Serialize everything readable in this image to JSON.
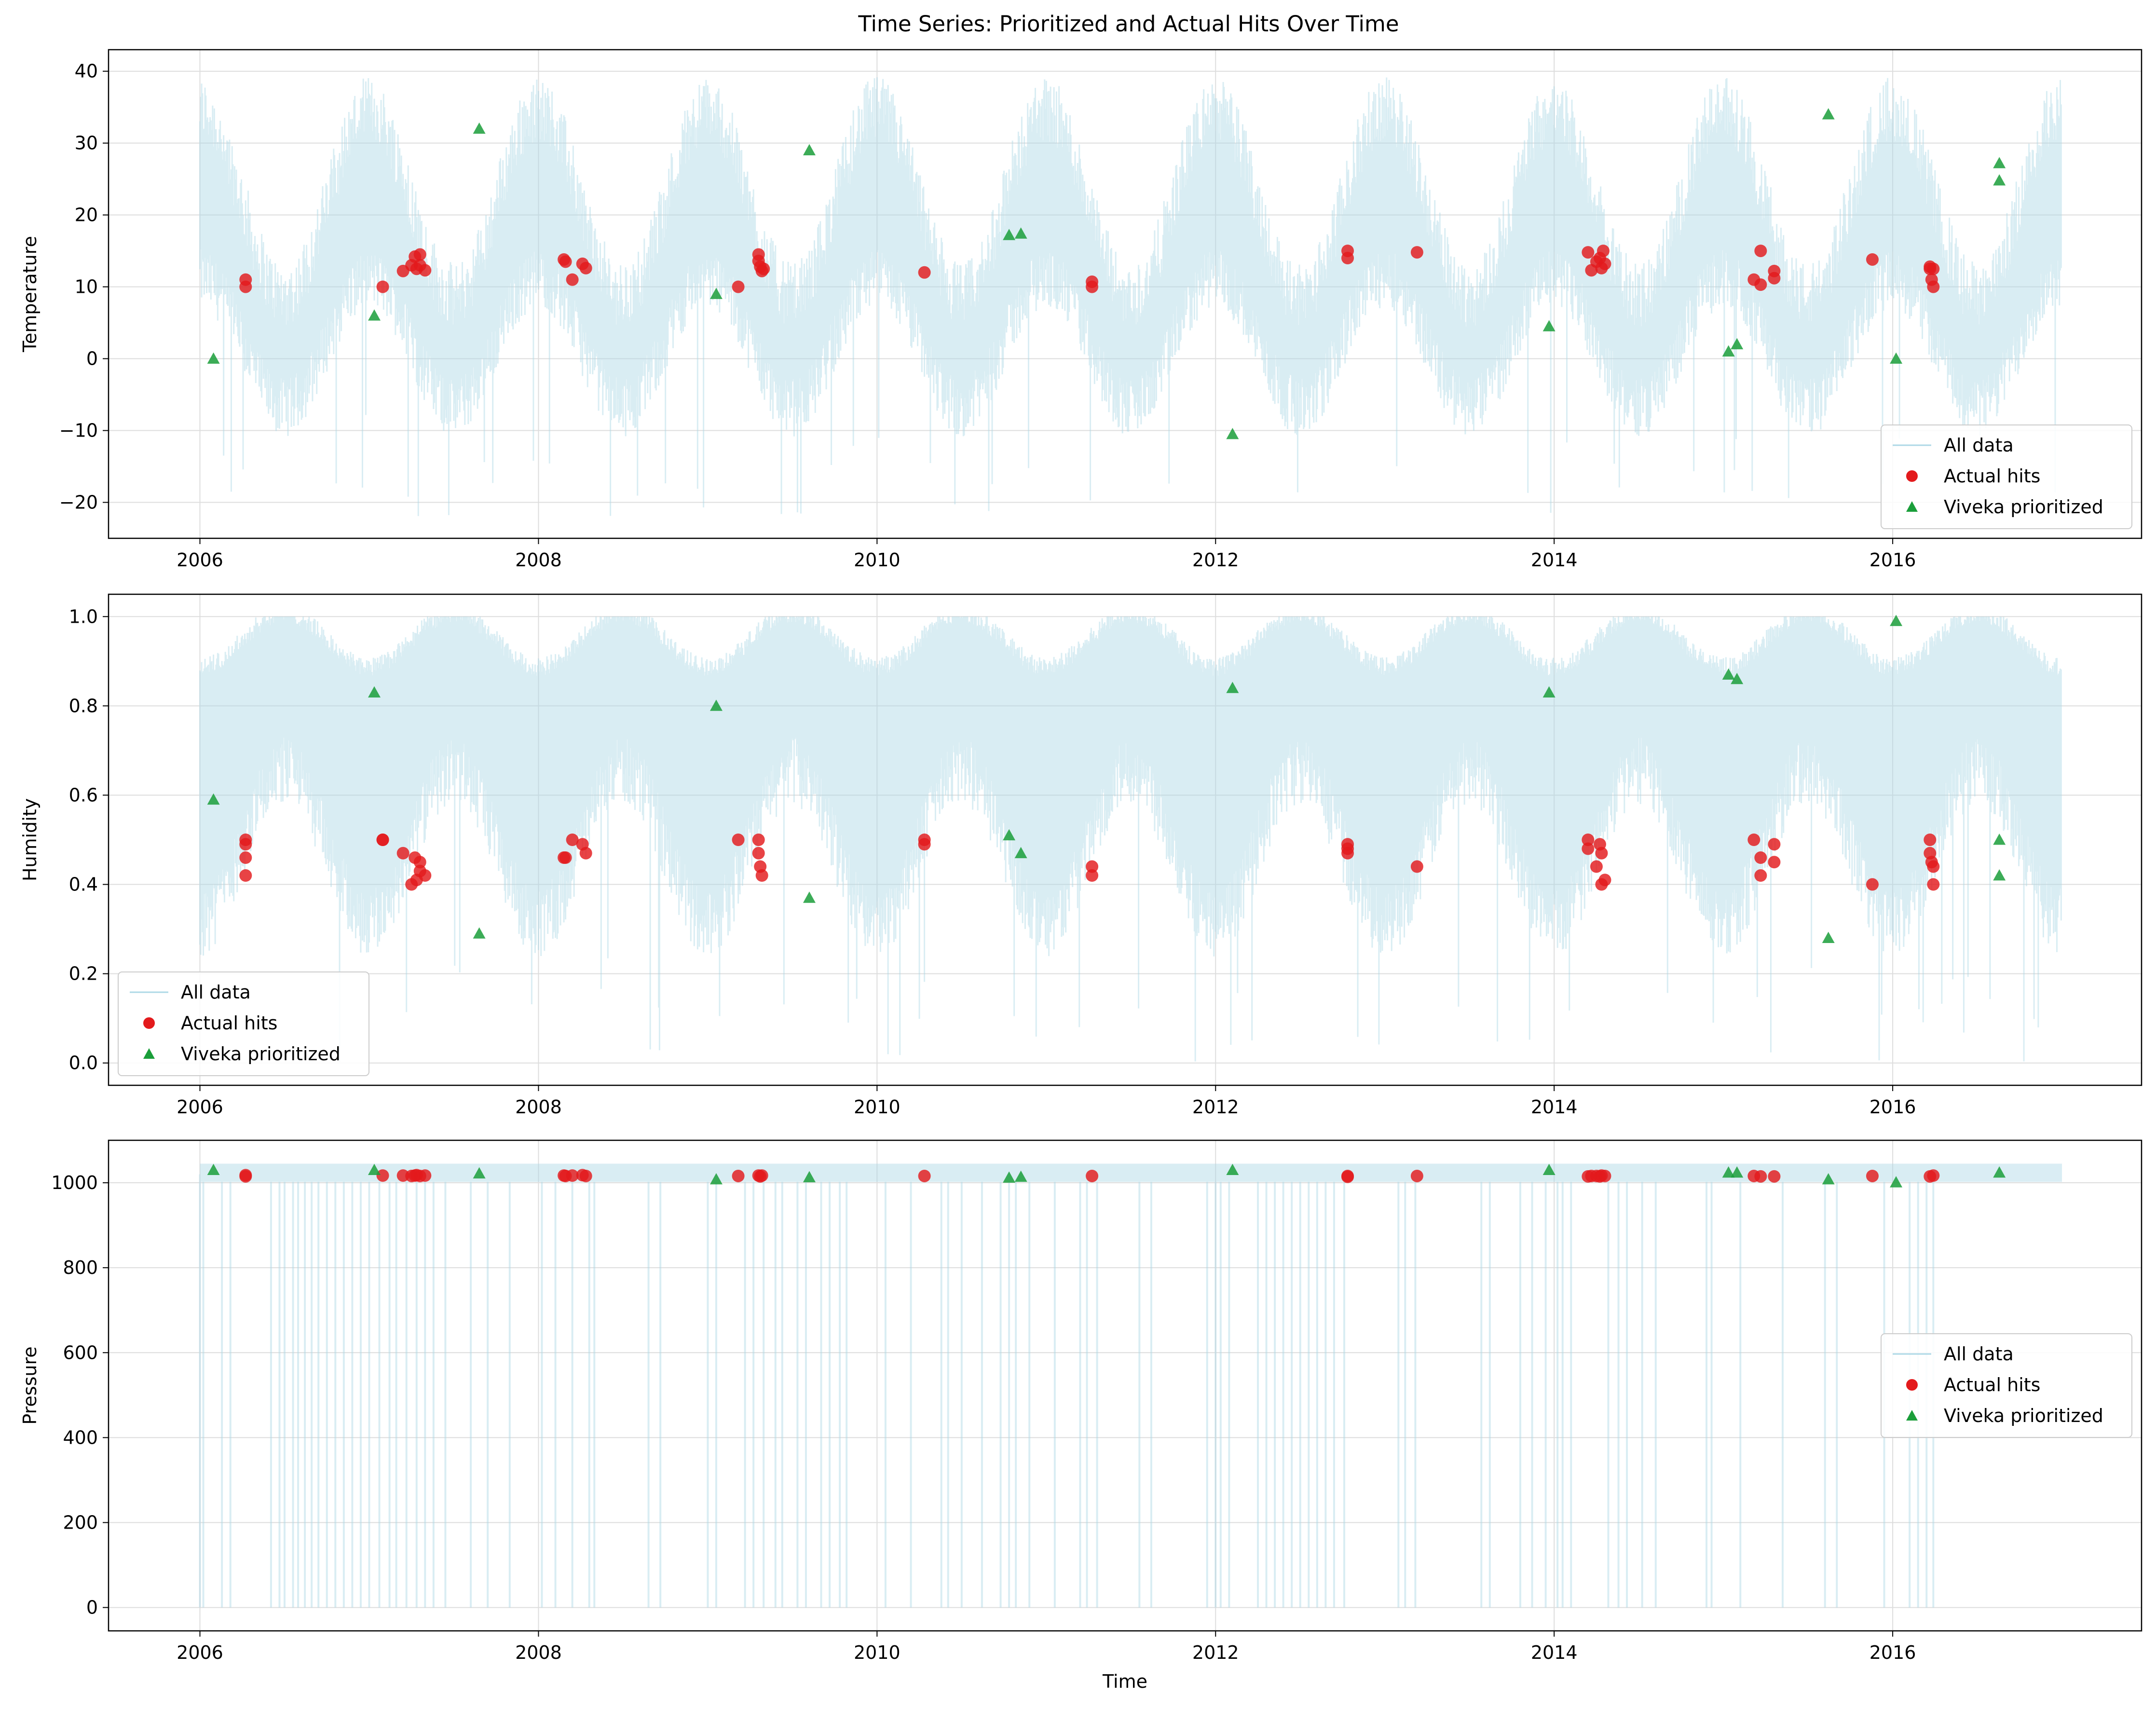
{
  "figure_title": "Time Series: Prioritized and Actual Hits Over Time",
  "colors": {
    "all_data": "#add8e6",
    "actual_hits": "#e31a1c",
    "prioritized": "#1a9e3a",
    "grid": "#dddddd"
  },
  "chart_data": [
    {
      "type": "scatter",
      "ylabel": "Temperature",
      "xlabel": "",
      "xlim": [
        2005.46,
        2017.47
      ],
      "ylim": [
        -25,
        43
      ],
      "xticks": [
        2006,
        2008,
        2010,
        2012,
        2014,
        2016
      ],
      "xtick_labels": [
        "2006",
        "2008",
        "2010",
        "2012",
        "2014",
        "2016"
      ],
      "yticks": [
        -20,
        -10,
        0,
        10,
        20,
        30,
        40
      ],
      "ytick_labels": [
        "−20",
        "−10",
        "0",
        "10",
        "20",
        "30",
        "40"
      ],
      "grid": true,
      "legend": {
        "placement": "lower-right",
        "entries": [
          "All data",
          "Actual hits",
          "Viveka prioritized"
        ]
      },
      "background": {
        "name": "All data",
        "kind": "seasonal_band",
        "range_x": [
          2006.0,
          2017.0
        ],
        "low_mean": 3,
        "low_amp": 9,
        "high_mean": 20,
        "high_amp": 13,
        "min": -22,
        "max": 40,
        "peak_phase": 0.5
      },
      "series": [
        {
          "name": "Actual hits",
          "marker": "circle",
          "x": [
            2006.27,
            2006.27,
            2007.08,
            2007.2,
            2007.25,
            2007.27,
            2007.28,
            2007.3,
            2007.3,
            2007.33,
            2008.15,
            2008.16,
            2008.2,
            2008.26,
            2008.28,
            2009.18,
            2009.3,
            2009.3,
            2009.31,
            2009.32,
            2009.33,
            2010.28,
            2011.27,
            2011.27,
            2012.78,
            2012.78,
            2013.19,
            2014.2,
            2014.22,
            2014.25,
            2014.27,
            2014.28,
            2014.29,
            2014.3,
            2015.18,
            2015.22,
            2015.22,
            2015.3,
            2015.3,
            2015.88,
            2016.22,
            2016.22,
            2016.23,
            2016.24,
            2016.24
          ],
          "y": [
            11,
            10,
            10,
            12.2,
            13,
            14.2,
            12.5,
            14.5,
            13,
            12.3,
            13.8,
            13.5,
            11,
            13.2,
            12.6,
            10,
            14.5,
            13.6,
            12.8,
            12.2,
            12.5,
            12,
            10.7,
            10,
            15,
            14,
            14.8,
            14.8,
            12.3,
            13.5,
            14,
            12.6,
            15,
            13.2,
            11,
            10.3,
            15,
            12.2,
            11.2,
            13.8,
            12.8,
            12.5,
            11,
            10,
            12.5
          ]
        },
        {
          "name": "Viveka prioritized",
          "marker": "triangle",
          "x": [
            2006.08,
            2007.03,
            2007.65,
            2009.05,
            2009.6,
            2010.78,
            2010.85,
            2012.1,
            2013.97,
            2015.03,
            2015.08,
            2015.62,
            2016.02,
            2016.63,
            2016.63
          ],
          "y": [
            0,
            6,
            32,
            9,
            29,
            17.2,
            17.4,
            -10.5,
            4.5,
            1,
            2,
            34,
            0,
            27.2,
            24.8
          ]
        }
      ]
    },
    {
      "type": "scatter",
      "ylabel": "Humidity",
      "xlabel": "",
      "xlim": [
        2005.46,
        2017.47
      ],
      "ylim": [
        -0.05,
        1.05
      ],
      "xticks": [
        2006,
        2008,
        2010,
        2012,
        2014,
        2016
      ],
      "xtick_labels": [
        "2006",
        "2008",
        "2010",
        "2012",
        "2014",
        "2016"
      ],
      "yticks": [
        0,
        0.2,
        0.4,
        0.6,
        0.8,
        1.0
      ],
      "ytick_labels": [
        "0.0",
        "0.2",
        "0.4",
        "0.6",
        "0.8",
        "1.0"
      ],
      "grid": true,
      "legend": {
        "placement": "lower-left",
        "entries": [
          "All data",
          "Actual hits",
          "Viveka prioritized"
        ]
      },
      "background": {
        "name": "All data",
        "kind": "seasonal_band",
        "range_x": [
          2006.0,
          2017.0
        ],
        "low_mean": 0.5,
        "low_amp": 0.17,
        "high_mean": 0.94,
        "high_amp": 0.06,
        "min": 0.0,
        "max": 1.0,
        "peak_phase": 0.0
      },
      "series": [
        {
          "name": "Actual hits",
          "marker": "circle",
          "x": [
            2006.27,
            2006.27,
            2006.27,
            2006.27,
            2007.08,
            2007.08,
            2007.2,
            2007.25,
            2007.27,
            2007.28,
            2007.3,
            2007.3,
            2007.33,
            2008.15,
            2008.16,
            2008.2,
            2008.26,
            2008.28,
            2009.18,
            2009.3,
            2009.3,
            2009.31,
            2009.32,
            2010.28,
            2010.28,
            2011.27,
            2011.27,
            2012.78,
            2012.78,
            2012.78,
            2013.19,
            2014.2,
            2014.2,
            2014.25,
            2014.27,
            2014.28,
            2014.28,
            2014.3,
            2015.18,
            2015.22,
            2015.22,
            2015.3,
            2015.3,
            2015.88,
            2016.22,
            2016.22,
            2016.23,
            2016.24,
            2016.24
          ],
          "y": [
            0.5,
            0.49,
            0.46,
            0.42,
            0.5,
            0.5,
            0.47,
            0.4,
            0.46,
            0.41,
            0.45,
            0.43,
            0.42,
            0.46,
            0.46,
            0.5,
            0.49,
            0.47,
            0.5,
            0.5,
            0.47,
            0.44,
            0.42,
            0.5,
            0.49,
            0.44,
            0.42,
            0.49,
            0.48,
            0.47,
            0.44,
            0.5,
            0.48,
            0.44,
            0.49,
            0.47,
            0.4,
            0.41,
            0.5,
            0.46,
            0.42,
            0.49,
            0.45,
            0.4,
            0.5,
            0.47,
            0.45,
            0.44,
            0.4
          ]
        },
        {
          "name": "Viveka prioritized",
          "marker": "triangle",
          "x": [
            2006.08,
            2007.03,
            2007.65,
            2009.05,
            2009.6,
            2010.78,
            2010.85,
            2012.1,
            2013.97,
            2015.03,
            2015.08,
            2015.62,
            2016.02,
            2016.63,
            2016.63
          ],
          "y": [
            0.59,
            0.83,
            0.29,
            0.8,
            0.37,
            0.51,
            0.47,
            0.84,
            0.83,
            0.87,
            0.86,
            0.28,
            0.99,
            0.5,
            0.42
          ]
        }
      ]
    },
    {
      "type": "scatter",
      "ylabel": "Pressure",
      "xlabel": "Time",
      "xlim": [
        2005.46,
        2017.47
      ],
      "ylim": [
        -55,
        1100
      ],
      "xticks": [
        2006,
        2008,
        2010,
        2012,
        2014,
        2016
      ],
      "xtick_labels": [
        "2006",
        "2008",
        "2010",
        "2012",
        "2014",
        "2016"
      ],
      "yticks": [
        0,
        200,
        400,
        600,
        800,
        1000
      ],
      "ytick_labels": [
        "0",
        "200",
        "400",
        "600",
        "800",
        "1000"
      ],
      "grid": true,
      "legend": {
        "placement": "center-right",
        "entries": [
          "All data",
          "Actual hits",
          "Viveka prioritized"
        ]
      },
      "background": {
        "name": "All data",
        "kind": "dropout_band",
        "range_x": [
          2006.0,
          2017.0
        ],
        "level": 1020,
        "spread": 18,
        "min": 0,
        "max": 1045,
        "dropouts": [
          2006.0,
          2006.02,
          2006.13,
          2006.18,
          2006.42,
          2006.47,
          2006.5,
          2006.55,
          2006.58,
          2006.62,
          2006.66,
          2006.7,
          2006.75,
          2006.8,
          2006.85,
          2006.9,
          2006.95,
          2007.0,
          2007.06,
          2007.12,
          2007.16,
          2007.22,
          2007.28,
          2007.33,
          2007.38,
          2007.45,
          2007.6,
          2007.7,
          2007.83,
          2008.02,
          2008.1,
          2008.2,
          2008.3,
          2008.33,
          2008.65,
          2008.72,
          2009.0,
          2009.05,
          2009.22,
          2009.27,
          2009.33,
          2009.4,
          2009.44,
          2009.53,
          2009.58,
          2009.67,
          2009.72,
          2009.78,
          2009.82,
          2010.05,
          2010.2,
          2010.38,
          2010.42,
          2010.5,
          2010.62,
          2010.73,
          2010.78,
          2010.82,
          2010.9,
          2011.05,
          2011.2,
          2011.24,
          2011.3,
          2011.55,
          2011.62,
          2011.95,
          2012.0,
          2012.03,
          2012.08,
          2012.25,
          2012.3,
          2012.35,
          2012.4,
          2012.45,
          2012.5,
          2012.55,
          2012.6,
          2012.65,
          2012.7,
          2012.76,
          2013.08,
          2013.12,
          2013.18,
          2013.57,
          2013.62,
          2013.8,
          2013.87,
          2013.95,
          2014.02,
          2014.05,
          2014.1,
          2014.32,
          2014.38,
          2014.43,
          2014.52,
          2014.6,
          2014.9,
          2014.93,
          2015.1,
          2015.35,
          2015.6,
          2015.67,
          2015.95,
          2016.1,
          2016.15,
          2016.2,
          2016.24
        ]
      },
      "series": [
        {
          "name": "Actual hits",
          "marker": "circle",
          "x": [
            2006.27,
            2006.27,
            2007.08,
            2007.2,
            2007.25,
            2007.27,
            2007.28,
            2007.3,
            2007.33,
            2008.15,
            2008.16,
            2008.2,
            2008.26,
            2008.28,
            2009.18,
            2009.3,
            2009.31,
            2009.32,
            2010.28,
            2011.27,
            2012.78,
            2012.78,
            2013.19,
            2014.2,
            2014.22,
            2014.25,
            2014.27,
            2014.28,
            2014.3,
            2015.18,
            2015.22,
            2015.3,
            2015.88,
            2016.22,
            2016.24
          ],
          "y": [
            1018,
            1015,
            1017,
            1017,
            1016,
            1017,
            1018,
            1016,
            1017,
            1017,
            1016,
            1017,
            1018,
            1016,
            1016,
            1017,
            1015,
            1017,
            1016,
            1016,
            1016,
            1014,
            1016,
            1015,
            1016,
            1016,
            1015,
            1017,
            1016,
            1016,
            1015,
            1015,
            1016,
            1015,
            1017
          ]
        },
        {
          "name": "Viveka prioritized",
          "marker": "triangle",
          "x": [
            2006.08,
            2007.03,
            2007.65,
            2009.05,
            2009.6,
            2010.78,
            2010.85,
            2012.1,
            2013.97,
            2015.03,
            2015.08,
            2015.62,
            2016.02,
            2016.63
          ],
          "y": [
            1030,
            1030,
            1022,
            1008,
            1013,
            1012,
            1014,
            1030,
            1030,
            1024,
            1024,
            1008,
            1001,
            1024
          ]
        }
      ]
    }
  ]
}
